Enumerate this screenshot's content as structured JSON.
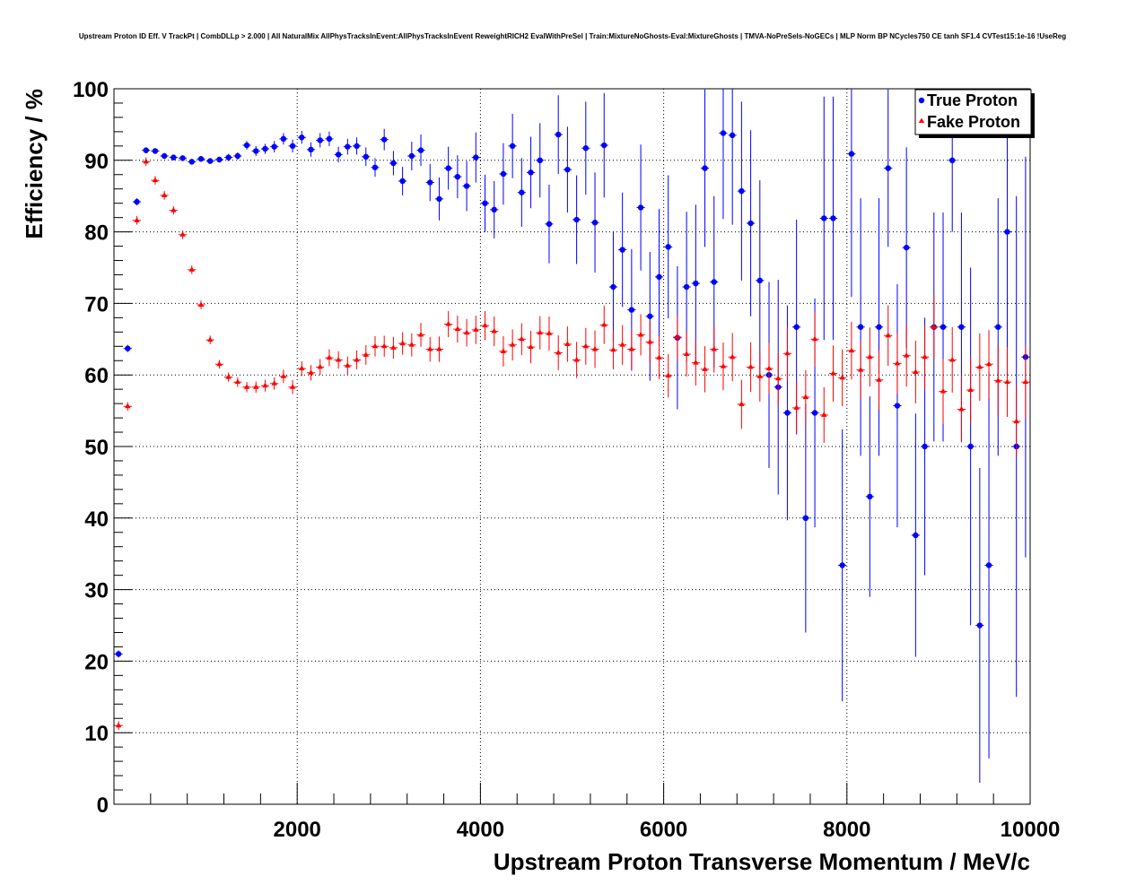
{
  "chart_data": {
    "type": "scatter",
    "title": "Upstream Proton ID Eff. V TrackPt | CombDLLp > 2.000 | All NaturalMix AllPhysTracksInEvent:AllPhysTracksInEvent ReweightRICH2 EvalWithPreSel | Train:MixtureNoGhosts-Eval:MixtureGhosts | TMVA-NoPreSels-NoGECs | MLP Norm BP NCycles750 CE tanh SF1.4 CVTest15:1e-16 !UseReg",
    "xlabel": "Upstream Proton Transverse Momentum / MeV/c",
    "ylabel": "Efficiency / %",
    "xlim": [
      0,
      10000
    ],
    "ylim": [
      0,
      100
    ],
    "x_ticks": [
      "2000",
      "4000",
      "6000",
      "8000",
      "10000"
    ],
    "y_ticks": [
      "0",
      "10",
      "20",
      "30",
      "40",
      "50",
      "60",
      "70",
      "80",
      "90",
      "100"
    ],
    "grid": true,
    "legend_position": "top-right",
    "series": [
      {
        "name": "True Proton",
        "color": "#0000ff",
        "marker": "circle",
        "x": [
          50,
          150,
          250,
          350,
          450,
          550,
          650,
          750,
          850,
          950,
          1050,
          1150,
          1250,
          1350,
          1450,
          1550,
          1650,
          1750,
          1850,
          1950,
          2050,
          2150,
          2250,
          2350,
          2450,
          2550,
          2650,
          2750,
          2850,
          2950,
          3050,
          3150,
          3250,
          3350,
          3450,
          3550,
          3650,
          3750,
          3850,
          3950,
          4050,
          4150,
          4250,
          4350,
          4450,
          4550,
          4650,
          4750,
          4850,
          4950,
          5050,
          5150,
          5250,
          5350,
          5450,
          5550,
          5650,
          5750,
          5850,
          5950,
          6050,
          6150,
          6250,
          6350,
          6450,
          6550,
          6650,
          6750,
          6850,
          6950,
          7050,
          7150,
          7250,
          7350,
          7450,
          7550,
          7650,
          7750,
          7850,
          7950,
          8050,
          8150,
          8250,
          8350,
          8450,
          8550,
          8650,
          8750,
          8850,
          8950,
          9050,
          9150,
          9250,
          9350,
          9450,
          9550,
          9650,
          9750,
          9850,
          9950
        ],
        "y": [
          21,
          63.7,
          84.2,
          91.4,
          91.3,
          90.6,
          90.4,
          90.3,
          89.8,
          90.2,
          89.9,
          90.1,
          90.4,
          90.6,
          92.1,
          91.3,
          91.6,
          91.9,
          93.0,
          92.0,
          93.2,
          91.5,
          92.8,
          93.0,
          90.8,
          91.9,
          92.0,
          90.5,
          89.0,
          92.9,
          89.6,
          87.1,
          90.6,
          91.4,
          86.9,
          84.6,
          88.9,
          87.7,
          86.4,
          90.4,
          84.0,
          83.1,
          88.1,
          92.0,
          85.5,
          88.3,
          90.0,
          81.1,
          93.6,
          88.7,
          81.7,
          91.7,
          81.3,
          92.1,
          72.3,
          77.5,
          69.1,
          83.4,
          68.2,
          73.7,
          77.9,
          65.2,
          72.3,
          72.8,
          88.9,
          73.0,
          93.8,
          93.5,
          85.7,
          81.2,
          73.2,
          60.0,
          58.3,
          54.7,
          66.7,
          40.0,
          54.7,
          81.9,
          81.9,
          33.4,
          90.9,
          66.7,
          43.0,
          66.7,
          88.9,
          55.7,
          77.8,
          37.6,
          50.0,
          66.7,
          66.7,
          90.0,
          66.7,
          50.0,
          25.0,
          33.4,
          66.7,
          80.0,
          50.0,
          62.5
        ],
        "yerr": [
          0.5,
          0.5,
          0.5,
          0.4,
          0.4,
          0.4,
          0.4,
          0.4,
          0.4,
          0.4,
          0.4,
          0.4,
          0.5,
          0.5,
          0.6,
          0.7,
          0.7,
          0.8,
          0.8,
          0.9,
          0.9,
          1.0,
          1.0,
          1.0,
          1.1,
          1.1,
          1.2,
          1.3,
          1.3,
          1.5,
          1.7,
          2.0,
          2.0,
          2.2,
          2.6,
          3.0,
          3.0,
          3.0,
          3.5,
          3.5,
          4.0,
          4.0,
          4.3,
          4.5,
          4.8,
          5.0,
          5.2,
          5.5,
          5.5,
          6.0,
          6.2,
          6.5,
          7.0,
          7.3,
          7.8,
          8.0,
          8.5,
          8.8,
          9.0,
          9.5,
          10.0,
          10.0,
          10.5,
          11.0,
          11.0,
          12.0,
          12.0,
          12.5,
          12.5,
          13.0,
          14.0,
          13.0,
          15.0,
          15.0,
          15.0,
          16.0,
          16.0,
          17.0,
          17.0,
          19.0,
          20.0,
          18.0,
          14.0,
          18.0,
          11.0,
          17.0,
          14.0,
          17.0,
          18.0,
          16.0,
          16.0,
          10.0,
          16.0,
          25.0,
          22.0,
          27.0,
          18.0,
          20.0,
          35.0,
          28.0
        ]
      },
      {
        "name": "Fake Proton",
        "color": "#ff0000",
        "marker": "triangle",
        "x": [
          50,
          150,
          250,
          350,
          450,
          550,
          650,
          750,
          850,
          950,
          1050,
          1150,
          1250,
          1350,
          1450,
          1550,
          1650,
          1750,
          1850,
          1950,
          2050,
          2150,
          2250,
          2350,
          2450,
          2550,
          2650,
          2750,
          2850,
          2950,
          3050,
          3150,
          3250,
          3350,
          3450,
          3550,
          3650,
          3750,
          3850,
          3950,
          4050,
          4150,
          4250,
          4350,
          4450,
          4550,
          4650,
          4750,
          4850,
          4950,
          5050,
          5150,
          5250,
          5350,
          5450,
          5550,
          5650,
          5750,
          5850,
          5950,
          6050,
          6150,
          6250,
          6350,
          6450,
          6550,
          6650,
          6750,
          6850,
          6950,
          7050,
          7150,
          7250,
          7350,
          7450,
          7550,
          7650,
          7750,
          7850,
          7950,
          8050,
          8150,
          8250,
          8350,
          8450,
          8550,
          8650,
          8750,
          8850,
          8950,
          9050,
          9150,
          9250,
          9350,
          9450,
          9550,
          9650,
          9750,
          9850,
          9950
        ],
        "y": [
          11.0,
          55.6,
          81.6,
          89.8,
          87.2,
          85.1,
          83.0,
          79.6,
          74.7,
          69.8,
          64.9,
          61.5,
          59.7,
          59.0,
          58.3,
          58.3,
          58.5,
          58.8,
          59.8,
          58.3,
          60.9,
          60.3,
          61.1,
          62.4,
          62.1,
          61.3,
          62.1,
          62.8,
          64.0,
          64.0,
          63.8,
          64.4,
          64.2,
          65.6,
          63.6,
          63.6,
          67.1,
          66.4,
          65.9,
          66.3,
          66.9,
          66.1,
          63.3,
          64.2,
          65.0,
          63.9,
          65.9,
          65.8,
          63.1,
          64.3,
          62.1,
          64.0,
          63.6,
          67.0,
          63.5,
          64.2,
          63.6,
          65.6,
          64.6,
          62.4,
          59.9,
          65.3,
          62.9,
          61.7,
          60.8,
          63.6,
          61.2,
          62.5,
          55.9,
          61.1,
          59.8,
          60.9,
          59.5,
          63.0,
          55.4,
          56.9,
          65.0,
          54.4,
          60.2,
          59.6,
          63.4,
          60.7,
          62.5,
          59.3,
          65.5,
          61.6,
          62.7,
          60.4,
          62.5,
          66.7,
          57.7,
          62.1,
          55.2,
          57.9,
          61.1,
          61.5,
          59.2,
          59.0,
          53.5,
          59.0
        ]
      }
    ]
  }
}
